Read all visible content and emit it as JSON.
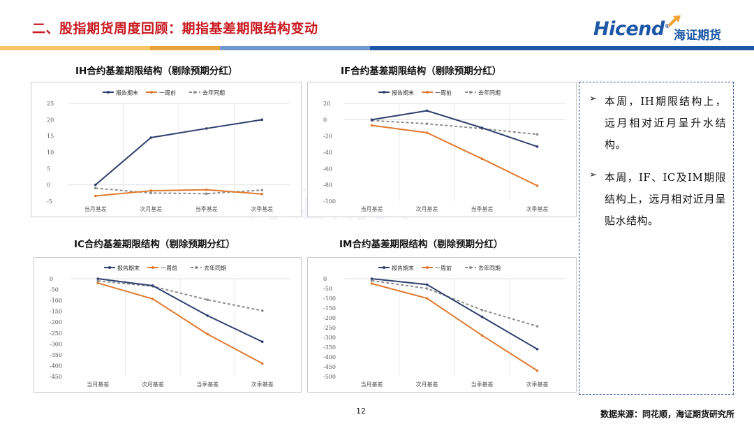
{
  "header": {
    "title": "二、股指期货周度回顾：期指基差期限结构变动",
    "logo_text": "Hicend",
    "logo_reg": "®",
    "logo_cn": "海证期货"
  },
  "colors": {
    "title_red": "#c8171e",
    "brand_blue": "#1c57a5",
    "stripe": [
      "#f2b84b",
      "#e8a33a",
      "#5b87c5",
      "#1c57a5"
    ],
    "series": [
      "#2e3f6e",
      "#e07a2e",
      "#8c8c8c"
    ]
  },
  "watermark_text": "海证期货",
  "charts": [
    {
      "title": "IH合约基差期限结构（剔除预期分红）",
      "chart_data": {
        "type": "line",
        "categories": [
          "当月基差",
          "次月基差",
          "当季基差",
          "次季基差"
        ],
        "ylim": [
          -5,
          25
        ],
        "yticks": [
          -5,
          0,
          5,
          10,
          15,
          20,
          25
        ],
        "grid": true,
        "legend": "top-center",
        "series": [
          {
            "name": "报告期末",
            "values": [
              0,
              14.5,
              17.3,
              20
            ]
          },
          {
            "name": "一周前",
            "values": [
              -3.4,
              -1.8,
              -1.5,
              -2.8
            ]
          },
          {
            "name": "去年同期",
            "values": [
              -1,
              -2.5,
              -2.7,
              -1.6
            ]
          }
        ]
      }
    },
    {
      "title": "IF合约基差期限结构（剔除预期分红）",
      "chart_data": {
        "type": "line",
        "categories": [
          "当月基差",
          "次月基差",
          "当季基差",
          "次季基差"
        ],
        "ylim": [
          -100,
          20
        ],
        "yticks": [
          -100,
          -80,
          -60,
          -40,
          -20,
          0,
          20
        ],
        "grid": true,
        "legend": "top-center",
        "series": [
          {
            "name": "报告期末",
            "values": [
              0,
              11,
              -10,
              -33
            ]
          },
          {
            "name": "一周前",
            "values": [
              -7,
              -16,
              -48,
              -81
            ]
          },
          {
            "name": "去年同期",
            "values": [
              -1,
              -5,
              -11,
              -18
            ]
          }
        ]
      }
    },
    {
      "title": "IC合约基差期限结构（剔除预期分红）",
      "chart_data": {
        "type": "line",
        "categories": [
          "当月基差",
          "次月基差",
          "当季基差",
          "次季基差"
        ],
        "ylim": [
          -450,
          0
        ],
        "yticks": [
          -450,
          -400,
          -350,
          -300,
          -250,
          -200,
          -150,
          -100,
          -50,
          0
        ],
        "grid": true,
        "legend": "top-center",
        "series": [
          {
            "name": "报告期末",
            "values": [
              0,
              -32,
              -170,
              -290
            ]
          },
          {
            "name": "一周前",
            "values": [
              -20,
              -93,
              -255,
              -390
            ]
          },
          {
            "name": "去年同期",
            "values": [
              -10,
              -35,
              -97,
              -147
            ]
          }
        ]
      }
    },
    {
      "title": "IM合约基差期限结构（剔除预期分红）",
      "chart_data": {
        "type": "line",
        "categories": [
          "当月基差",
          "次月基差",
          "当季基差",
          "次季基差"
        ],
        "ylim": [
          -500,
          0
        ],
        "yticks": [
          -500,
          -450,
          -400,
          -350,
          -300,
          -250,
          -200,
          -150,
          -100,
          -50,
          0
        ],
        "grid": true,
        "legend": "top-center",
        "series": [
          {
            "name": "报告期末",
            "values": [
              0,
              -30,
              -195,
              -360
            ]
          },
          {
            "name": "一周前",
            "values": [
              -25,
              -100,
              -290,
              -470
            ]
          },
          {
            "name": "去年同期",
            "values": [
              -10,
              -50,
              -160,
              -243
            ]
          }
        ]
      }
    }
  ],
  "notes": [
    {
      "text": "本周，IH期限结构上，远月相对近月呈升水结构。"
    },
    {
      "text": "本周，IF、IC及IM期限结构上，远月相对近月呈贴水结构。"
    }
  ],
  "footer": {
    "page_number": "12",
    "source": "数据来源：同花顺，海证期货研究所"
  }
}
